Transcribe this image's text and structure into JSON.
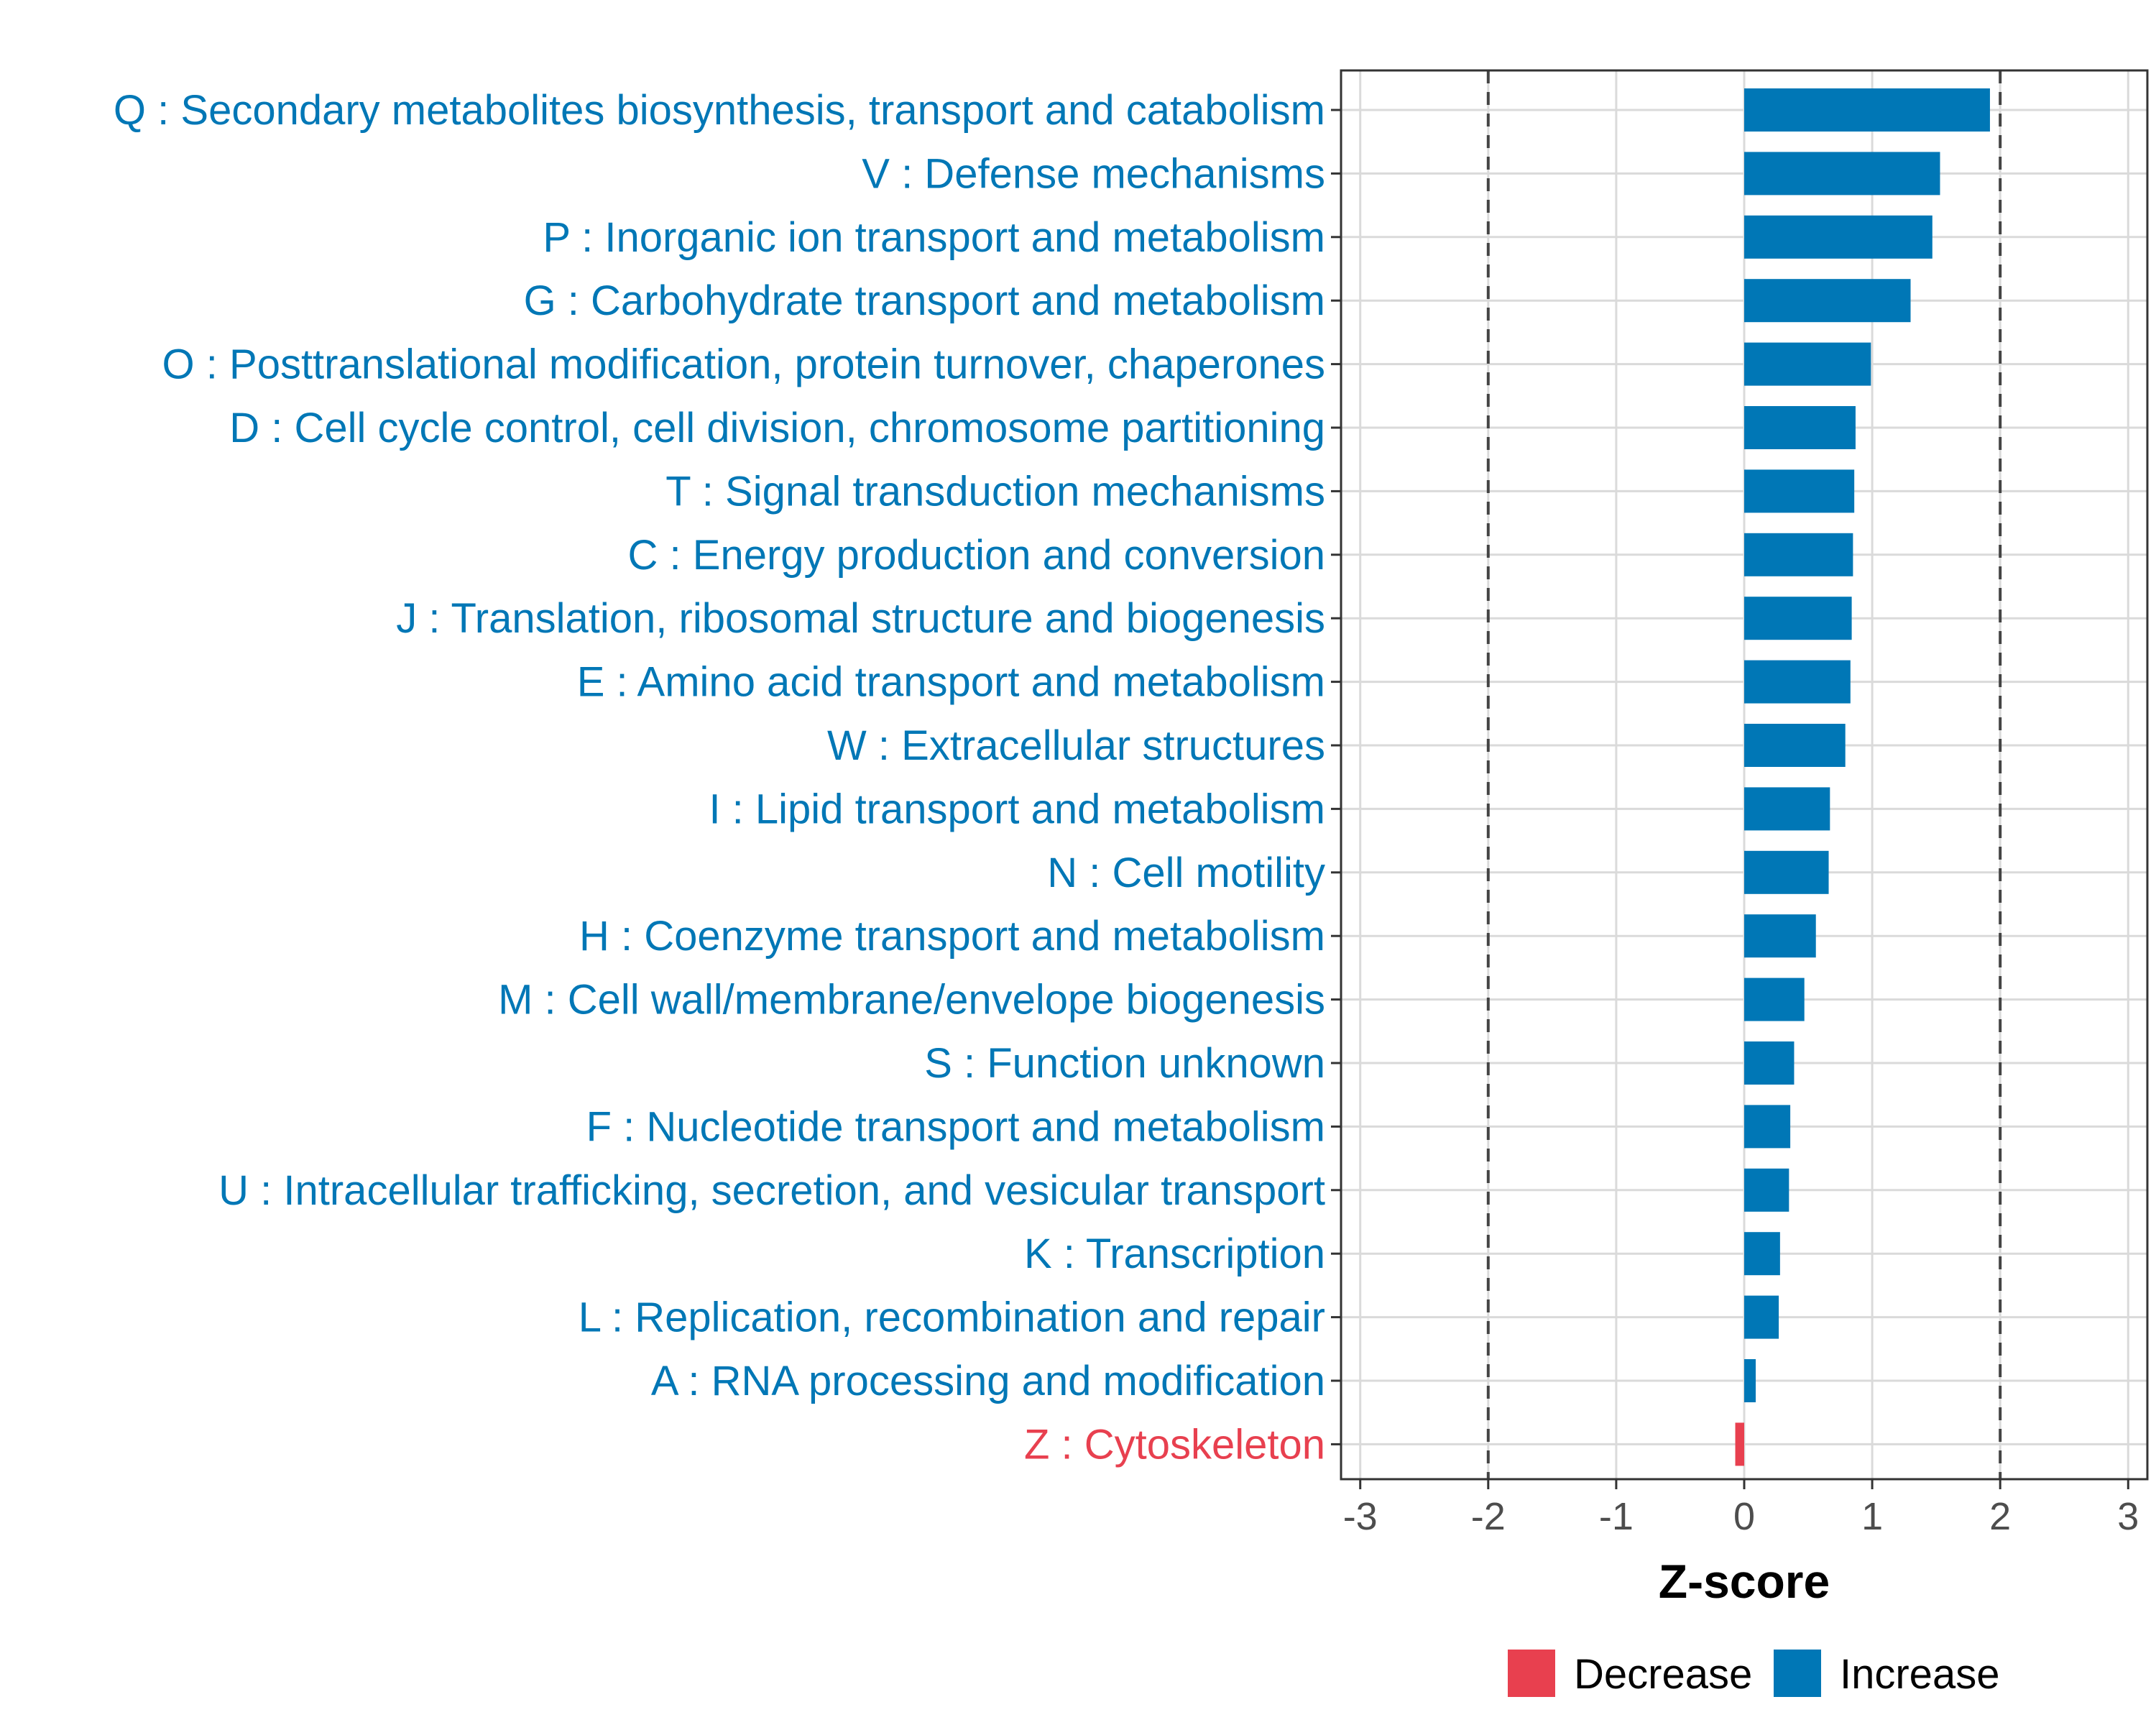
{
  "chart_data": {
    "type": "bar",
    "orientation": "horizontal",
    "title": "",
    "xlabel": "Z-score",
    "ylabel": "",
    "xlim": [
      -3.15,
      3.15
    ],
    "xticks": [
      -3,
      -2,
      -1,
      0,
      1,
      2,
      3
    ],
    "xtick_labels": [
      "-3",
      "-2",
      "-1",
      "0",
      "1",
      "2",
      "3"
    ],
    "threshold_lines": [
      -2,
      2
    ],
    "grid": true,
    "legend_position": "bottom",
    "legend": [
      {
        "label": "Decrease",
        "color": "#E8404F"
      },
      {
        "label": "Increase",
        "color": "#0077B6"
      }
    ],
    "categories": [
      "Q : Secondary metabolites biosynthesis, transport and catabolism",
      "V : Defense mechanisms",
      "P : Inorganic ion transport and metabolism",
      "G : Carbohydrate transport and metabolism",
      "O : Posttranslational modification, protein turnover, chaperones",
      "D : Cell cycle control, cell division, chromosome partitioning",
      "T : Signal transduction mechanisms",
      "C : Energy production and conversion",
      "J : Translation, ribosomal structure and biogenesis",
      "E : Amino acid transport and metabolism",
      "W : Extracellular structures",
      "I : Lipid transport and metabolism",
      "N : Cell motility",
      "H : Coenzyme transport and metabolism",
      "M : Cell wall/membrane/envelope biogenesis",
      "S : Function unknown",
      "F : Nucleotide transport and metabolism",
      "U : Intracellular trafficking, secretion, and vesicular transport",
      "K : Transcription",
      "L : Replication, recombination and repair",
      "A : RNA processing and modification",
      "Z : Cytoskeleton"
    ],
    "values": [
      1.92,
      1.53,
      1.47,
      1.3,
      0.99,
      0.87,
      0.86,
      0.85,
      0.84,
      0.83,
      0.79,
      0.67,
      0.66,
      0.56,
      0.47,
      0.39,
      0.36,
      0.35,
      0.28,
      0.27,
      0.09,
      -0.07
    ],
    "direction": [
      "Increase",
      "Increase",
      "Increase",
      "Increase",
      "Increase",
      "Increase",
      "Increase",
      "Increase",
      "Increase",
      "Increase",
      "Increase",
      "Increase",
      "Increase",
      "Increase",
      "Increase",
      "Increase",
      "Increase",
      "Increase",
      "Increase",
      "Increase",
      "Increase",
      "Decrease"
    ]
  }
}
